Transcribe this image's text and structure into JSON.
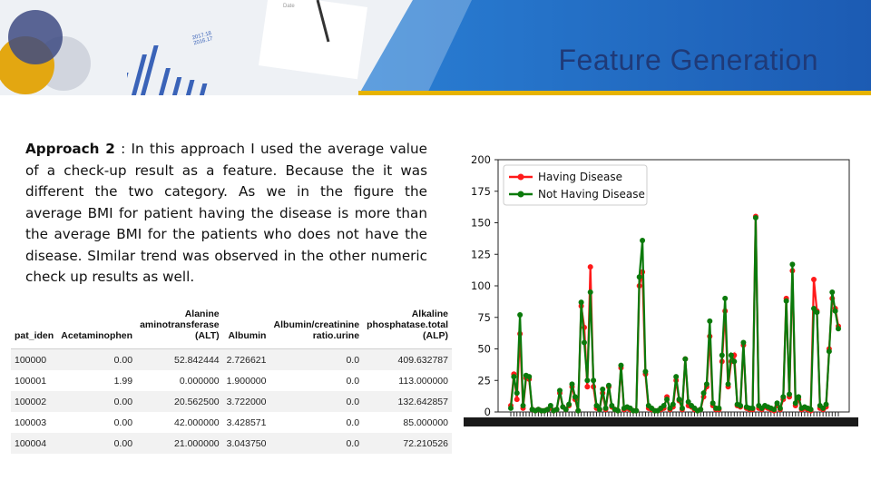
{
  "slide": {
    "title": "Feature Generation",
    "banner_tablet_text": [
      "2017.18",
      "2016.17"
    ],
    "banner_tablet_corner": "Date"
  },
  "approach": {
    "heading": "Approach 2",
    "body": " : In this approach I used the average value of a check-up result as a feature. Because the it was different the two category. As we in the figure the average BMI for patient having the disease is more than the average BMI for the patients who does not have the disease. SImilar trend was observed in the other numeric check up results as well."
  },
  "table": {
    "columns": [
      [
        "pat_iden"
      ],
      [
        "Acetaminophen"
      ],
      [
        "Alanine",
        "aminotransferase",
        "(ALT)"
      ],
      [
        "Albumin"
      ],
      [
        "Albumin/creatinine",
        "ratio.urine"
      ],
      [
        "Alkaline",
        "phosphatase.total",
        "(ALP)"
      ]
    ],
    "rows": [
      [
        "100000",
        "0.00",
        "52.842444",
        "2.726621",
        "0.0",
        "409.632787"
      ],
      [
        "100001",
        "1.99",
        "0.000000",
        "1.900000",
        "0.0",
        "113.000000"
      ],
      [
        "100002",
        "0.00",
        "20.562500",
        "3.722000",
        "0.0",
        "132.642857"
      ],
      [
        "100003",
        "0.00",
        "42.000000",
        "3.428571",
        "0.0",
        "85.000000"
      ],
      [
        "100004",
        "0.00",
        "21.000000",
        "3.043750",
        "0.0",
        "72.210526"
      ]
    ]
  },
  "chart_data": {
    "type": "line",
    "ylim": [
      0,
      200
    ],
    "yticks": [
      0,
      25,
      50,
      75,
      100,
      125,
      150,
      175,
      200
    ],
    "legend": "top-left",
    "grid": false,
    "series": [
      {
        "name": "Having Disease",
        "color": "#ff1a1a",
        "values": [
          5,
          30,
          10,
          62,
          3,
          27,
          26,
          2,
          1,
          2,
          1,
          1,
          2,
          3,
          1,
          2,
          15,
          4,
          2,
          5,
          20,
          10,
          1,
          84,
          67,
          20,
          115,
          20,
          3,
          2,
          15,
          2,
          20,
          4,
          2,
          1,
          35,
          2,
          3,
          2,
          1,
          1,
          100,
          111,
          30,
          3,
          2,
          1,
          1,
          2,
          3,
          12,
          2,
          4,
          25,
          9,
          2,
          42,
          5,
          4,
          2,
          1,
          2,
          12,
          20,
          60,
          5,
          2,
          2,
          40,
          80,
          20,
          40,
          45,
          5,
          4,
          53,
          3,
          2,
          2,
          155,
          3,
          2,
          4,
          3,
          2,
          1,
          5,
          2,
          10,
          90,
          12,
          112,
          5,
          10,
          2,
          3,
          2,
          1,
          105,
          80,
          3,
          2,
          4,
          50,
          90,
          82,
          68
        ]
      },
      {
        "name": "Not Having Disease",
        "color": "#0b7a0b",
        "values": [
          3,
          28,
          15,
          77,
          5,
          29,
          28,
          2,
          1,
          2,
          1,
          1,
          2,
          5,
          1,
          2,
          17,
          4,
          2,
          6,
          22,
          12,
          1,
          87,
          55,
          25,
          95,
          25,
          5,
          2,
          18,
          3,
          21,
          5,
          2,
          1,
          37,
          3,
          4,
          3,
          1,
          1,
          107,
          136,
          32,
          5,
          3,
          1,
          1,
          3,
          5,
          10,
          3,
          6,
          28,
          10,
          3,
          42,
          8,
          5,
          3,
          1,
          2,
          15,
          22,
          72,
          7,
          3,
          3,
          45,
          90,
          22,
          45,
          40,
          6,
          5,
          55,
          4,
          3,
          3,
          154,
          5,
          3,
          5,
          4,
          3,
          2,
          7,
          3,
          12,
          88,
          14,
          117,
          7,
          12,
          3,
          4,
          3,
          2,
          82,
          79,
          5,
          3,
          6,
          48,
          95,
          80,
          66
        ]
      }
    ]
  }
}
